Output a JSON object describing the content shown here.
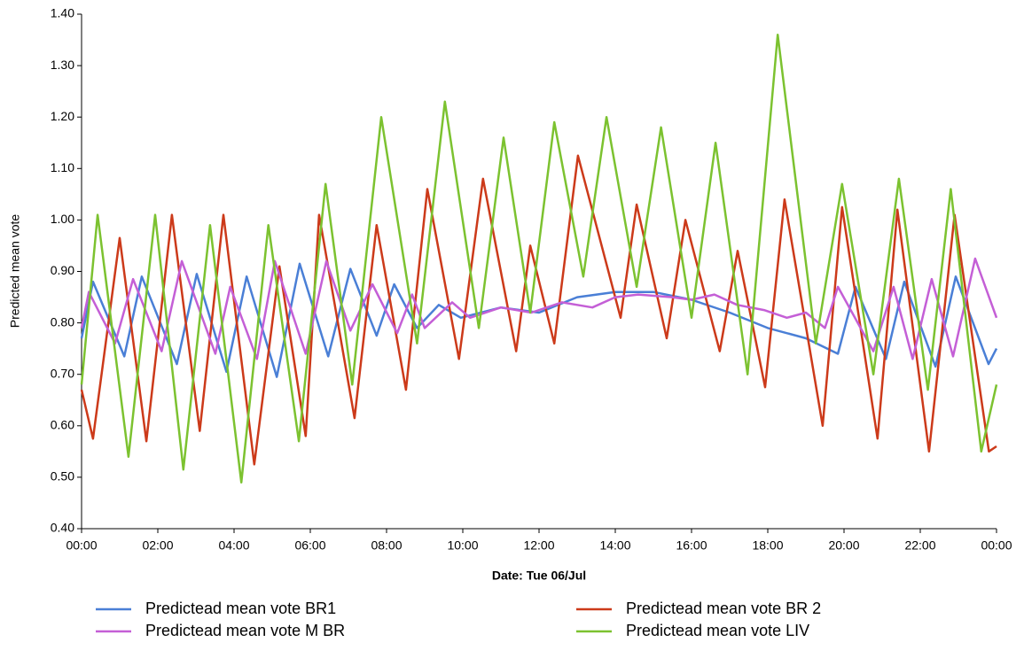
{
  "chart_data": {
    "type": "line",
    "y_label": "Predicted mean vote",
    "x_label": "Date: Tue 06/Jul",
    "xlim": [
      0,
      24
    ],
    "ylim": [
      0.4,
      1.4
    ],
    "xticks": [
      {
        "value": 0,
        "label": "00:00"
      },
      {
        "value": 2,
        "label": "02:00"
      },
      {
        "value": 4,
        "label": "04:00"
      },
      {
        "value": 6,
        "label": "06:00"
      },
      {
        "value": 8,
        "label": "08:00"
      },
      {
        "value": 10,
        "label": "10:00"
      },
      {
        "value": 12,
        "label": "12:00"
      },
      {
        "value": 14,
        "label": "14:00"
      },
      {
        "value": 16,
        "label": "16:00"
      },
      {
        "value": 18,
        "label": "18:00"
      },
      {
        "value": 20,
        "label": "20:00"
      },
      {
        "value": 22,
        "label": "22:00"
      },
      {
        "value": 24,
        "label": "00:00"
      }
    ],
    "yticks": [
      {
        "value": 0.4,
        "label": "0.40"
      },
      {
        "value": 0.5,
        "label": "0.50"
      },
      {
        "value": 0.6,
        "label": "0.60"
      },
      {
        "value": 0.7,
        "label": "0.70"
      },
      {
        "value": 0.8,
        "label": "0.80"
      },
      {
        "value": 0.9,
        "label": "0.90"
      },
      {
        "value": 1.0,
        "label": "1.00"
      },
      {
        "value": 1.1,
        "label": "1.10"
      },
      {
        "value": 1.2,
        "label": "1.20"
      },
      {
        "value": 1.3,
        "label": "1.30"
      },
      {
        "value": 1.4,
        "label": "1.40"
      }
    ],
    "grid": false,
    "series": [
      {
        "name": "Predictead mean vote BR1",
        "color": "#4a7fd6",
        "x": [
          0,
          0.3,
          1.12,
          1.58,
          2.5,
          3.02,
          3.8,
          4.33,
          5.12,
          5.72,
          6.47,
          7.05,
          7.74,
          8.2,
          8.8,
          9.37,
          9.95,
          11,
          12,
          13,
          14,
          15,
          16,
          17,
          18,
          19,
          19.84,
          20.3,
          21.1,
          21.58,
          22.4,
          22.93,
          23.79,
          24
        ],
        "values": [
          0.77,
          0.88,
          0.735,
          0.89,
          0.72,
          0.895,
          0.705,
          0.89,
          0.695,
          0.915,
          0.735,
          0.905,
          0.775,
          0.875,
          0.79,
          0.835,
          0.81,
          0.83,
          0.82,
          0.85,
          0.86,
          0.86,
          0.845,
          0.82,
          0.79,
          0.77,
          0.74,
          0.87,
          0.73,
          0.88,
          0.715,
          0.89,
          0.72,
          0.75
        ]
      },
      {
        "name": "Predictead mean vote BR 2",
        "color": "#cc3a1a",
        "x": [
          0,
          0.3,
          1,
          1.7,
          2.37,
          3.1,
          3.72,
          4.53,
          5.19,
          5.88,
          6.23,
          7.16,
          7.74,
          8.51,
          9.07,
          9.9,
          10.53,
          11.4,
          11.77,
          12.4,
          13.02,
          14.14,
          14.56,
          15.35,
          15.84,
          16.74,
          17.21,
          17.93,
          18.44,
          19.44,
          19.95,
          20.88,
          21.4,
          22.23,
          22.9,
          23.8,
          24
        ],
        "values": [
          0.67,
          0.575,
          0.965,
          0.57,
          1.01,
          0.59,
          1.01,
          0.525,
          0.91,
          0.58,
          1.01,
          0.615,
          0.99,
          0.67,
          1.06,
          0.73,
          1.08,
          0.745,
          0.95,
          0.76,
          1.125,
          0.81,
          1.03,
          0.77,
          1.0,
          0.745,
          0.94,
          0.675,
          1.04,
          0.6,
          1.025,
          0.575,
          1.02,
          0.55,
          1.01,
          0.55,
          0.56
        ]
      },
      {
        "name": "Predictead mean vote M BR",
        "color": "#c45fd6",
        "x": [
          0,
          0.19,
          0.88,
          1.35,
          2.1,
          2.63,
          3.51,
          3.9,
          4.6,
          5.07,
          5.88,
          6.42,
          7.05,
          7.63,
          8.28,
          8.67,
          9,
          9.72,
          10.19,
          11,
          11.8,
          12.6,
          13.4,
          14,
          14.6,
          15.5,
          16,
          16.6,
          17.2,
          17.9,
          18.5,
          19,
          19.5,
          19.84,
          20.77,
          21.3,
          21.8,
          22.3,
          22.86,
          23.44,
          24
        ],
        "values": [
          0.79,
          0.86,
          0.76,
          0.885,
          0.745,
          0.92,
          0.74,
          0.87,
          0.73,
          0.92,
          0.74,
          0.92,
          0.785,
          0.875,
          0.78,
          0.855,
          0.79,
          0.84,
          0.81,
          0.83,
          0.82,
          0.84,
          0.83,
          0.85,
          0.855,
          0.85,
          0.845,
          0.855,
          0.835,
          0.825,
          0.81,
          0.82,
          0.79,
          0.87,
          0.745,
          0.87,
          0.73,
          0.885,
          0.735,
          0.925,
          0.81
        ]
      },
      {
        "name": "Predictead mean vote LIV",
        "color": "#7cc230",
        "x": [
          0,
          0.42,
          1.23,
          1.93,
          2.67,
          3.37,
          4.19,
          4.9,
          5.7,
          6.4,
          7.1,
          7.86,
          8.8,
          9.53,
          10.42,
          11.07,
          11.77,
          12.4,
          13.16,
          13.77,
          14.56,
          15.2,
          16,
          16.63,
          17.47,
          18.26,
          19.26,
          19.95,
          20.77,
          21.44,
          22.2,
          22.8,
          23.6,
          24
        ],
        "values": [
          0.68,
          1.01,
          0.54,
          1.01,
          0.515,
          0.99,
          0.49,
          0.99,
          0.57,
          1.07,
          0.68,
          1.2,
          0.76,
          1.23,
          0.79,
          1.16,
          0.82,
          1.19,
          0.89,
          1.2,
          0.87,
          1.18,
          0.81,
          1.15,
          0.7,
          1.36,
          0.76,
          1.07,
          0.7,
          1.08,
          0.67,
          1.06,
          0.55,
          0.68
        ]
      }
    ]
  }
}
